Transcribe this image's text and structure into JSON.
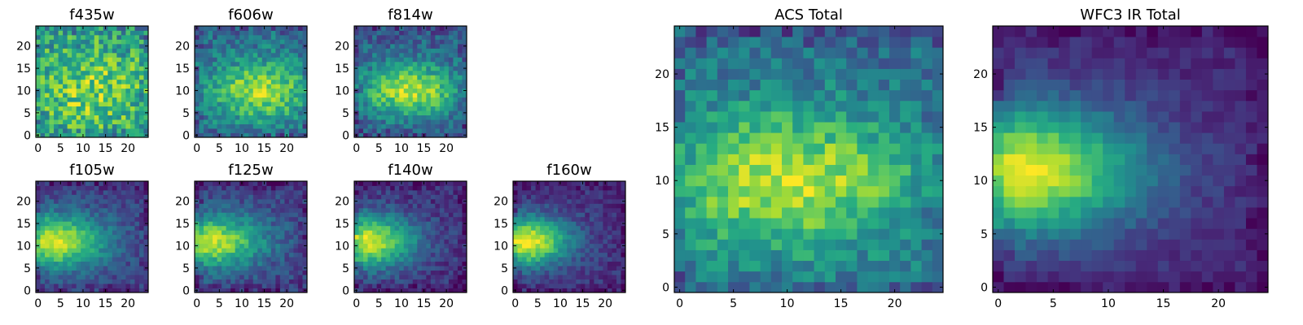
{
  "chart_data": [
    {
      "type": "heatmap",
      "title": "f435w",
      "grid": false,
      "xlim": [
        0,
        24
      ],
      "ylim": [
        0,
        24
      ],
      "xticks": [
        "0",
        "5",
        "10",
        "15",
        "20"
      ],
      "yticks": [
        "0",
        "5",
        "10",
        "15",
        "20"
      ],
      "colormap": "viridis",
      "structure": "noise",
      "peak": [
        12,
        10
      ],
      "sigma": [
        14,
        9
      ],
      "noise": 0.24,
      "base": 0.55,
      "amp": 0.25,
      "seed": 11
    },
    {
      "type": "heatmap",
      "title": "f606w",
      "grid": false,
      "xlim": [
        0,
        24
      ],
      "ylim": [
        0,
        24
      ],
      "xticks": [
        "0",
        "5",
        "10",
        "15",
        "20"
      ],
      "yticks": [
        "0",
        "5",
        "10",
        "15",
        "20"
      ],
      "colormap": "viridis",
      "structure": "blob",
      "peak": [
        14,
        10
      ],
      "sigma": [
        12,
        7
      ],
      "noise": 0.16,
      "base": 0.35,
      "amp": 0.5,
      "seed": 22
    },
    {
      "type": "heatmap",
      "title": "f814w",
      "grid": false,
      "xlim": [
        0,
        24
      ],
      "ylim": [
        0,
        24
      ],
      "xticks": [
        "0",
        "5",
        "10",
        "15",
        "20"
      ],
      "yticks": [
        "0",
        "5",
        "10",
        "15",
        "20"
      ],
      "colormap": "viridis",
      "structure": "blob",
      "peak": [
        12,
        10
      ],
      "sigma": [
        11,
        6
      ],
      "noise": 0.15,
      "base": 0.3,
      "amp": 0.6,
      "seed": 33
    },
    {
      "type": "heatmap",
      "title": "f105w",
      "grid": false,
      "xlim": [
        0,
        24
      ],
      "ylim": [
        0,
        24
      ],
      "xticks": [
        "0",
        "5",
        "10",
        "15",
        "20"
      ],
      "yticks": [
        "0",
        "5",
        "10",
        "15",
        "20"
      ],
      "colormap": "viridis",
      "structure": "blob",
      "peak": [
        3,
        11
      ],
      "sigma": [
        12,
        6
      ],
      "noise": 0.1,
      "base": 0.2,
      "amp": 0.75,
      "seed": 44
    },
    {
      "type": "heatmap",
      "title": "f125w",
      "grid": false,
      "xlim": [
        0,
        24
      ],
      "ylim": [
        0,
        24
      ],
      "xticks": [
        "0",
        "5",
        "10",
        "15",
        "20"
      ],
      "yticks": [
        "0",
        "5",
        "10",
        "15",
        "20"
      ],
      "colormap": "viridis",
      "structure": "blob",
      "peak": [
        3,
        11
      ],
      "sigma": [
        12,
        6
      ],
      "noise": 0.11,
      "base": 0.2,
      "amp": 0.7,
      "seed": 55
    },
    {
      "type": "heatmap",
      "title": "f140w",
      "grid": false,
      "xlim": [
        0,
        24
      ],
      "ylim": [
        0,
        24
      ],
      "xticks": [
        "0",
        "5",
        "10",
        "15",
        "20"
      ],
      "yticks": [
        "0",
        "5",
        "10",
        "15",
        "20"
      ],
      "colormap": "viridis",
      "structure": "blob",
      "peak": [
        2,
        11
      ],
      "sigma": [
        11,
        6
      ],
      "noise": 0.1,
      "base": 0.15,
      "amp": 0.8,
      "seed": 66
    },
    {
      "type": "heatmap",
      "title": "f160w",
      "grid": false,
      "xlim": [
        0,
        24
      ],
      "ylim": [
        0,
        24
      ],
      "xticks": [
        "0",
        "5",
        "10",
        "15",
        "20"
      ],
      "yticks": [
        "0",
        "5",
        "10",
        "15",
        "20"
      ],
      "colormap": "viridis",
      "structure": "blob",
      "peak": [
        2,
        11
      ],
      "sigma": [
        10,
        5.5
      ],
      "noise": 0.09,
      "base": 0.15,
      "amp": 0.85,
      "seed": 77
    },
    {
      "type": "heatmap",
      "title": "ACS Total",
      "grid": false,
      "xlim": [
        0,
        24
      ],
      "ylim": [
        0,
        24
      ],
      "xticks": [
        "0",
        "5",
        "10",
        "15",
        "20"
      ],
      "yticks": [
        "0",
        "5",
        "10",
        "15",
        "20"
      ],
      "colormap": "viridis",
      "structure": "blob",
      "peak": [
        10,
        10
      ],
      "sigma": [
        13,
        7
      ],
      "noise": 0.14,
      "base": 0.35,
      "amp": 0.55,
      "seed": 88
    },
    {
      "type": "heatmap",
      "title": "WFC3 IR Total",
      "grid": false,
      "xlim": [
        0,
        24
      ],
      "ylim": [
        0,
        24
      ],
      "xticks": [
        "0",
        "5",
        "10",
        "15",
        "20"
      ],
      "yticks": [
        "0",
        "5",
        "10",
        "15",
        "20"
      ],
      "colormap": "viridis",
      "structure": "blob",
      "peak": [
        2,
        11
      ],
      "sigma": [
        11,
        6
      ],
      "noise": 0.06,
      "base": 0.12,
      "amp": 0.85,
      "seed": 99
    }
  ]
}
